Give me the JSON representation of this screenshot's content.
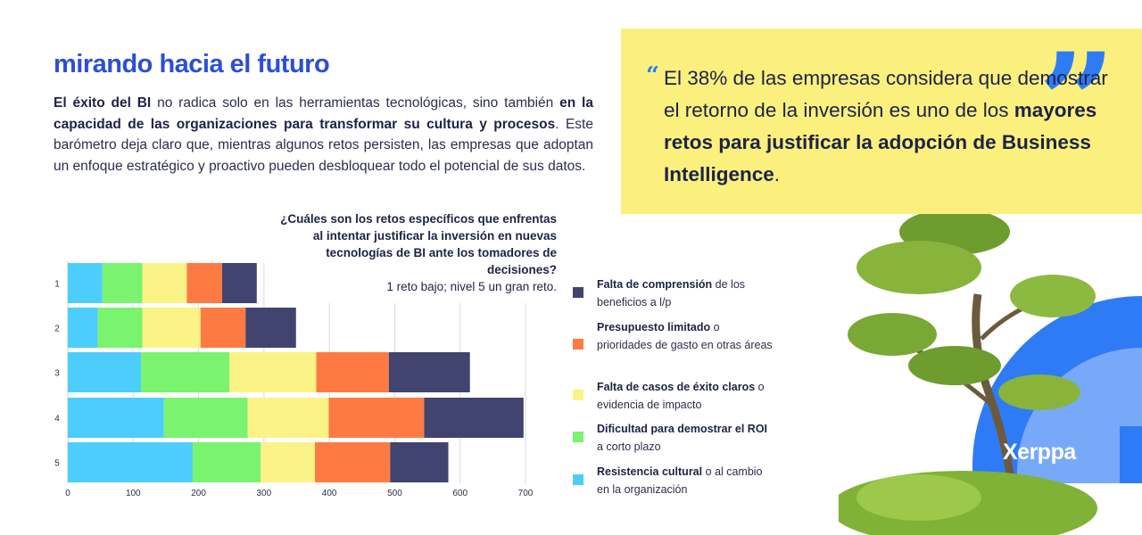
{
  "header": {
    "title": "mirando hacia el futuro"
  },
  "intro": {
    "b1": "El éxito del BI",
    "t1": " no radica solo en las herramientas tecnológicas, sino también ",
    "b2": "en la capacidad de las organizaciones para transformar su cultura y procesos",
    "t2": ". Este barómetro deja claro que, mientras algunos retos persisten, las empresas que adoptan un enfoque estratégico y proactivo pueden desbloquear todo el potencial de sus datos."
  },
  "quote": {
    "t1": "El 38% de las empresas considera que demostrar el retorno de la inversión es uno de los ",
    "b1": "mayores retos para justificar la adopción de Business Intelligence",
    "t2": ".",
    "accent_color": "#2f7bf5",
    "background": "#fbf07e"
  },
  "brand": {
    "name": "Xerppa"
  },
  "chart_data": {
    "type": "bar",
    "orientation": "horizontal",
    "stacked": true,
    "title": "¿Cuáles son los retos específicos que enfrentas al intentar justificar la inversión en nuevas tecnologías de BI ante los tomadores de decisiones?",
    "subtitle": "1 reto bajo; nivel 5 un gran reto.",
    "categories": [
      "1",
      "2",
      "3",
      "4",
      "5"
    ],
    "xlim": [
      0,
      700
    ],
    "xticks": [
      0,
      100,
      200,
      300,
      400,
      500,
      600,
      700
    ],
    "grid": true,
    "legend_position": "right",
    "series": [
      {
        "name": "Resistencia cultural o al cambio en la organización",
        "color": "#4dcdfc",
        "values": [
          53,
          46,
          112,
          147,
          191
        ]
      },
      {
        "name": "Dificultad para demostrar el ROI a corto plazo",
        "color": "#7af36f",
        "values": [
          61,
          68,
          135,
          128,
          104
        ]
      },
      {
        "name": "Falta de casos de éxito claros o evidencia de impacto",
        "color": "#fbf385",
        "values": [
          68,
          89,
          133,
          124,
          83
        ]
      },
      {
        "name": "Presupuesto limitado o prioridades de gasto en otras áreas",
        "color": "#fd7b43",
        "values": [
          54,
          69,
          111,
          146,
          115
        ]
      },
      {
        "name": "Falta de comprensión de los beneficios a l/p",
        "color": "#41446e",
        "values": [
          53,
          77,
          124,
          152,
          89
        ]
      }
    ]
  },
  "legend": [
    {
      "bold": "Falta de comprensión",
      "rest": " de los beneficios a l/p",
      "color": "#41446e"
    },
    {
      "bold": "Presupuesto limitado",
      "rest": " o prioridades de gasto en otras áreas",
      "color": "#fd7b43"
    },
    {
      "bold": "Falta de casos de éxito claros",
      "rest": " o evidencia de impacto",
      "color": "#fbf385"
    },
    {
      "bold": "Dificultad para demostrar el ROI",
      "rest": " a corto plazo",
      "color": "#7af36f"
    },
    {
      "bold": "Resistencia cultural",
      "rest": " o al cambio en la organización",
      "color": "#4dcdfc"
    }
  ]
}
